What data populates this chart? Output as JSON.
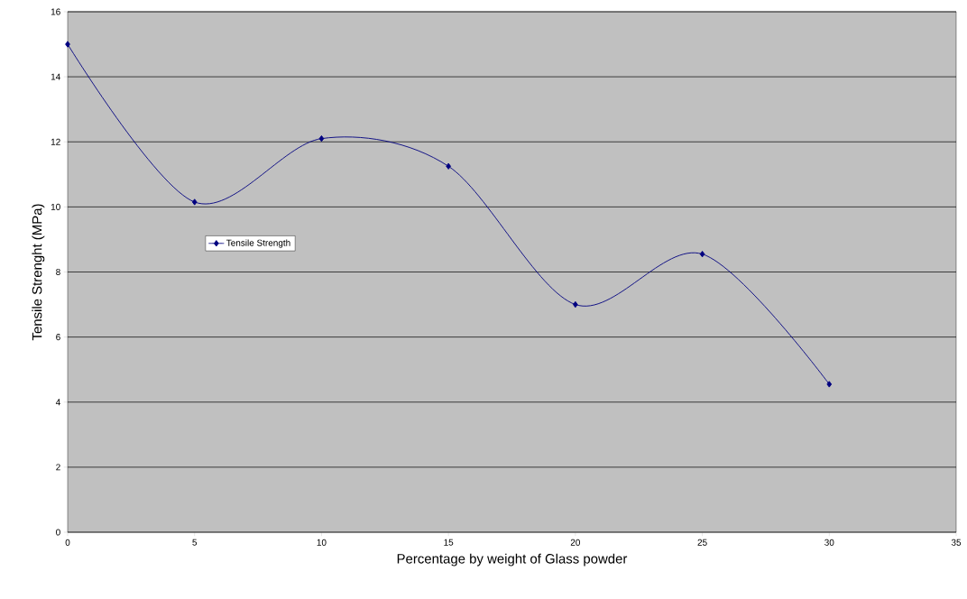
{
  "chart_data": {
    "type": "line",
    "xlabel": "Percentage by weight of Glass powder",
    "ylabel": "Tensile Strenght (MPa)",
    "x": [
      0,
      5,
      10,
      15,
      20,
      25,
      30
    ],
    "series": [
      {
        "name": "Tensile Strength",
        "color": "#000080",
        "values": [
          15.0,
          10.15,
          12.1,
          11.25,
          7.0,
          8.55,
          4.55
        ]
      }
    ],
    "xlim": [
      0,
      35
    ],
    "xticks": [
      0,
      5,
      10,
      15,
      20,
      25,
      30,
      35
    ],
    "ylim": [
      0,
      16
    ],
    "yticks": [
      0,
      2,
      4,
      6,
      8,
      10,
      12,
      14,
      16
    ],
    "grid": "y",
    "legend": "left",
    "marker": "diamond",
    "line_style": "solid"
  }
}
